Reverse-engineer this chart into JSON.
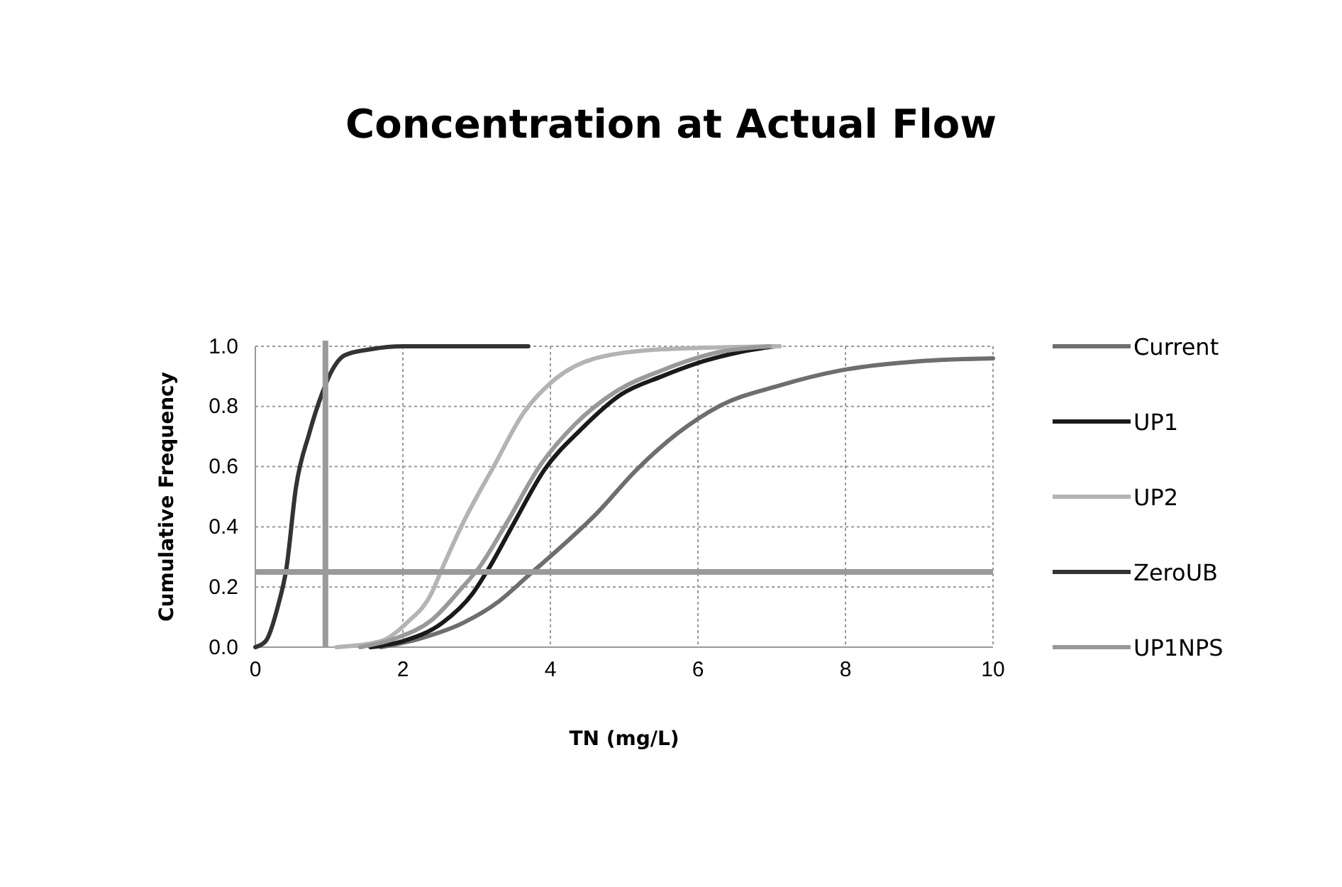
{
  "chart_data": {
    "type": "line",
    "title": "Concentration at Actual Flow",
    "xlabel": "TN (mg/L)",
    "ylabel": "Cumulative Frequency",
    "xlim": [
      0,
      10
    ],
    "xticks": [
      0,
      2,
      4,
      6,
      8,
      10
    ],
    "ylim": [
      0,
      1
    ],
    "yticks": [
      {
        "value": 0,
        "label": "0.0"
      },
      {
        "value": 0.2,
        "label": "0.2"
      },
      {
        "value": 0.4,
        "label": "0.4"
      },
      {
        "value": 0.6,
        "label": "0.6"
      },
      {
        "value": 0.8,
        "label": "0.8"
      },
      {
        "value": 1,
        "label": "1.0"
      }
    ],
    "grid": true,
    "legend": "right",
    "marker": "none",
    "line_style": "solid",
    "series": [
      {
        "name": "Current",
        "color": "#6e6e6e",
        "x": [
          1.7,
          2.25,
          2.81,
          3.29,
          3.71,
          4.13,
          4.61,
          5.17,
          5.72,
          6.28,
          7.11,
          7.94,
          8.98,
          10
        ],
        "values": [
          0,
          0.03,
          0.08,
          0.15,
          0.24,
          0.33,
          0.44,
          0.59,
          0.71,
          0.8,
          0.87,
          0.92,
          0.95,
          0.96
        ]
      },
      {
        "name": "UP1",
        "color": "#1a1a1a",
        "x": [
          1.56,
          2.0,
          2.53,
          2.95,
          3.16,
          3.5,
          3.92,
          4.4,
          4.96,
          5.51,
          6.07,
          6.55,
          7.04
        ],
        "values": [
          0,
          0.02,
          0.08,
          0.18,
          0.26,
          0.41,
          0.59,
          0.72,
          0.84,
          0.9,
          0.95,
          0.98,
          1.0
        ]
      },
      {
        "name": "UP2",
        "color": "#b4b4b4",
        "x": [
          1.1,
          1.7,
          2.05,
          2.39,
          2.53,
          2.81,
          3.23,
          3.64,
          4.06,
          4.61,
          5.51,
          7.11
        ],
        "values": [
          0,
          0.02,
          0.08,
          0.18,
          0.26,
          0.41,
          0.6,
          0.78,
          0.89,
          0.96,
          0.99,
          1.0
        ]
      },
      {
        "name": "ZeroUB",
        "color": "#333333",
        "x": [
          0,
          0.14,
          0.31,
          0.42,
          0.55,
          0.73,
          0.9,
          1.04,
          1.21,
          1.56,
          2.0,
          3.7
        ],
        "values": [
          0,
          0.02,
          0.14,
          0.26,
          0.53,
          0.71,
          0.84,
          0.92,
          0.97,
          0.99,
          1.0,
          1.0
        ]
      },
      {
        "name": "UP1NPS",
        "color": "#999999",
        "x": [
          1.42,
          1.91,
          2.39,
          2.81,
          3.02,
          3.4,
          3.85,
          4.33,
          4.89,
          5.51,
          6.27,
          6.97
        ],
        "values": [
          0,
          0.03,
          0.09,
          0.2,
          0.26,
          0.41,
          0.6,
          0.74,
          0.85,
          0.92,
          0.98,
          1.0
        ]
      }
    ],
    "ref_lines": [
      {
        "axis": "y",
        "value": 0.25,
        "color": "#9a9a9a"
      },
      {
        "axis": "x",
        "value": 0.95,
        "color": "#9a9a9a"
      }
    ]
  }
}
